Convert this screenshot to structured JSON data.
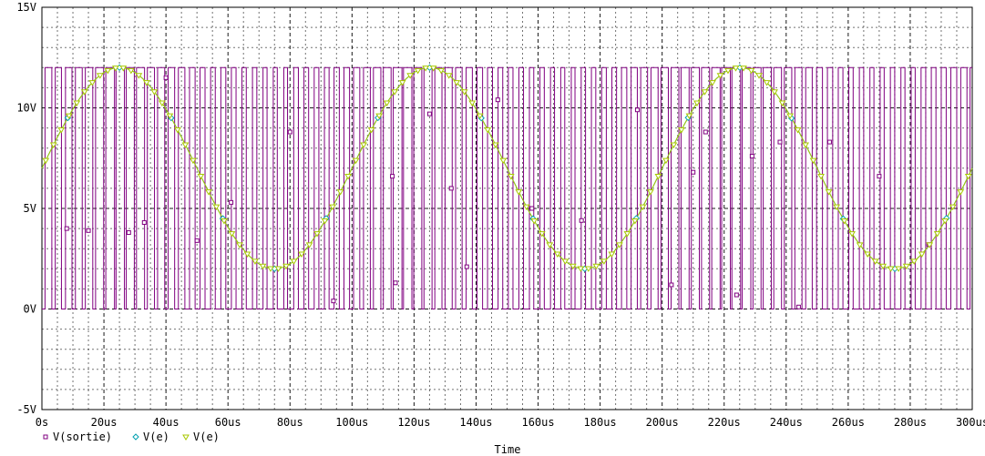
{
  "chart_data": {
    "type": "line",
    "title": "",
    "xlabel": "Time",
    "ylabel": "",
    "xlim": [
      0,
      300
    ],
    "ylim": [
      -5,
      15
    ],
    "grid": true,
    "x_ticks": [
      {
        "value": 0,
        "label": "0s"
      },
      {
        "value": 20,
        "label": "20us"
      },
      {
        "value": 40,
        "label": "40us"
      },
      {
        "value": 60,
        "label": "60us"
      },
      {
        "value": 80,
        "label": "80us"
      },
      {
        "value": 100,
        "label": "100us"
      },
      {
        "value": 120,
        "label": "120us"
      },
      {
        "value": 140,
        "label": "140us"
      },
      {
        "value": 160,
        "label": "160us"
      },
      {
        "value": 180,
        "label": "180us"
      },
      {
        "value": 200,
        "label": "200us"
      },
      {
        "value": 220,
        "label": "220us"
      },
      {
        "value": 240,
        "label": "240us"
      },
      {
        "value": 260,
        "label": "260us"
      },
      {
        "value": 280,
        "label": "280us"
      },
      {
        "value": 300,
        "label": "300us"
      }
    ],
    "y_ticks": [
      {
        "value": -5,
        "label": "-5V"
      },
      {
        "value": 0,
        "label": "0V"
      },
      {
        "value": 5,
        "label": "5V"
      },
      {
        "value": 10,
        "label": "10V"
      },
      {
        "value": 15,
        "label": "15V"
      }
    ],
    "legend_position": "bottom-left",
    "series": [
      {
        "name": "V(sortie)",
        "color": "#800080",
        "marker": "square",
        "style": "pwm",
        "low": 0,
        "high": 12,
        "carrier_period_us": 3.333,
        "transitions": [
          [
            0.0,
            0
          ],
          [
            1.0,
            12
          ],
          [
            3.2,
            0
          ],
          [
            4.3,
            12
          ],
          [
            6.3,
            0
          ],
          [
            7.6,
            12
          ],
          [
            9.7,
            0
          ],
          [
            10.8,
            12
          ],
          [
            13.0,
            0
          ],
          [
            14.0,
            12
          ],
          [
            16.4,
            0
          ],
          [
            17.3,
            12
          ],
          [
            19.9,
            0
          ],
          [
            20.6,
            12
          ],
          [
            23.4,
            0
          ],
          [
            23.9,
            12
          ],
          [
            26.6,
            0
          ],
          [
            27.2,
            12
          ],
          [
            29.8,
            0
          ],
          [
            30.5,
            12
          ],
          [
            33.1,
            0
          ],
          [
            34.0,
            12
          ],
          [
            36.3,
            0
          ],
          [
            37.3,
            12
          ],
          [
            39.6,
            0
          ],
          [
            40.7,
            12
          ],
          [
            42.8,
            0
          ],
          [
            44.0,
            12
          ],
          [
            46.1,
            0
          ],
          [
            47.6,
            12
          ],
          [
            49.4,
            0
          ],
          [
            51.0,
            12
          ],
          [
            52.6,
            0
          ],
          [
            54.4,
            12
          ],
          [
            55.9,
            0
          ],
          [
            57.7,
            12
          ],
          [
            59.3,
            0
          ],
          [
            61.1,
            12
          ],
          [
            62.6,
            0
          ],
          [
            64.5,
            12
          ],
          [
            65.9,
            0
          ],
          [
            67.9,
            12
          ],
          [
            69.3,
            0
          ],
          [
            71.3,
            12
          ],
          [
            72.6,
            0
          ],
          [
            74.6,
            12
          ],
          [
            75.9,
            0
          ],
          [
            78.0,
            12
          ],
          [
            79.2,
            0
          ],
          [
            81.2,
            12
          ],
          [
            82.7,
            0
          ],
          [
            84.5,
            12
          ],
          [
            86.0,
            0
          ],
          [
            87.8,
            12
          ],
          [
            89.3,
            0
          ],
          [
            91.1,
            12
          ],
          [
            92.6,
            0
          ],
          [
            94.2,
            12
          ],
          [
            95.9,
            0
          ],
          [
            97.4,
            12
          ],
          [
            99.2,
            0
          ],
          [
            100.5,
            12
          ],
          [
            102.5,
            0
          ],
          [
            103.7,
            12
          ],
          [
            105.9,
            0
          ],
          [
            106.9,
            12
          ],
          [
            109.3,
            0
          ],
          [
            110.1,
            12
          ],
          [
            112.6,
            0
          ],
          [
            113.3,
            12
          ],
          [
            116.1,
            0
          ],
          [
            116.6,
            12
          ],
          [
            119.3,
            0
          ],
          [
            119.9,
            12
          ],
          [
            122.5,
            0
          ],
          [
            123.2,
            12
          ],
          [
            125.8,
            0
          ],
          [
            126.7,
            12
          ],
          [
            129.0,
            0
          ],
          [
            130.0,
            12
          ],
          [
            132.3,
            0
          ],
          [
            133.4,
            12
          ],
          [
            135.5,
            0
          ],
          [
            136.8,
            12
          ],
          [
            138.8,
            0
          ],
          [
            140.3,
            12
          ],
          [
            142.1,
            0
          ],
          [
            143.7,
            12
          ],
          [
            145.3,
            0
          ],
          [
            147.1,
            12
          ],
          [
            148.6,
            0
          ],
          [
            150.4,
            12
          ],
          [
            151.9,
            0
          ],
          [
            153.8,
            12
          ],
          [
            155.3,
            0
          ],
          [
            157.2,
            12
          ],
          [
            158.6,
            0
          ],
          [
            160.6,
            12
          ],
          [
            162.0,
            0
          ],
          [
            164.0,
            12
          ],
          [
            165.3,
            0
          ],
          [
            167.3,
            12
          ],
          [
            168.6,
            0
          ],
          [
            170.7,
            12
          ],
          [
            171.9,
            0
          ],
          [
            173.9,
            12
          ],
          [
            175.3,
            0
          ],
          [
            177.2,
            12
          ],
          [
            178.6,
            0
          ],
          [
            180.5,
            12
          ],
          [
            182.0,
            0
          ],
          [
            183.8,
            12
          ],
          [
            185.3,
            0
          ],
          [
            186.9,
            12
          ],
          [
            188.6,
            0
          ],
          [
            190.0,
            12
          ],
          [
            192.0,
            0
          ],
          [
            193.1,
            12
          ],
          [
            195.3,
            0
          ],
          [
            196.4,
            12
          ],
          [
            198.7,
            0
          ],
          [
            199.6,
            12
          ],
          [
            202.0,
            0
          ],
          [
            202.9,
            12
          ],
          [
            205.4,
            0
          ],
          [
            206.1,
            12
          ],
          [
            208.7,
            0
          ],
          [
            209.4,
            12
          ],
          [
            212.0,
            0
          ],
          [
            212.7,
            12
          ],
          [
            215.3,
            0
          ],
          [
            216.0,
            12
          ],
          [
            218.7,
            0
          ],
          [
            219.2,
            12
          ],
          [
            222.0,
            0
          ],
          [
            222.5,
            12
          ],
          [
            225.3,
            0
          ],
          [
            225.8,
            12
          ],
          [
            228.6,
            0
          ],
          [
            229.3,
            12
          ],
          [
            231.9,
            0
          ],
          [
            232.6,
            12
          ],
          [
            235.2,
            0
          ],
          [
            236.0,
            12
          ],
          [
            238.5,
            0
          ],
          [
            239.4,
            12
          ],
          [
            241.8,
            0
          ],
          [
            242.8,
            12
          ],
          [
            245.1,
            0
          ],
          [
            246.3,
            12
          ],
          [
            248.4,
            0
          ],
          [
            249.8,
            12
          ],
          [
            251.7,
            0
          ],
          [
            253.3,
            12
          ],
          [
            255.0,
            0
          ],
          [
            256.8,
            12
          ],
          [
            258.3,
            0
          ],
          [
            260.2,
            12
          ],
          [
            261.6,
            0
          ],
          [
            263.6,
            12
          ],
          [
            265.0,
            0
          ],
          [
            267.0,
            12
          ],
          [
            268.3,
            0
          ],
          [
            270.3,
            12
          ],
          [
            271.6,
            0
          ],
          [
            273.6,
            12
          ],
          [
            275.0,
            0
          ],
          [
            277.0,
            12
          ],
          [
            278.3,
            0
          ],
          [
            280.3,
            12
          ],
          [
            281.6,
            0
          ],
          [
            283.5,
            12
          ],
          [
            285.0,
            0
          ],
          [
            286.8,
            12
          ],
          [
            288.3,
            0
          ],
          [
            290.0,
            12
          ],
          [
            291.6,
            0
          ],
          [
            293.1,
            12
          ],
          [
            295.0,
            0
          ],
          [
            296.3,
            12
          ],
          [
            298.3,
            0
          ],
          [
            299.3,
            12
          ],
          [
            300.0,
            12
          ]
        ],
        "markers": [
          [
            8,
            4
          ],
          [
            15,
            3.9
          ],
          [
            28,
            3.8
          ],
          [
            33,
            4.3
          ],
          [
            40,
            11.5
          ],
          [
            50,
            3.4
          ],
          [
            61,
            5.3
          ],
          [
            80,
            8.8
          ],
          [
            94,
            0.4
          ],
          [
            114,
            1.3
          ],
          [
            113,
            6.6
          ],
          [
            125,
            9.7
          ],
          [
            132,
            6
          ],
          [
            137,
            2.1
          ],
          [
            147,
            10.4
          ],
          [
            158,
            5
          ],
          [
            174,
            4.4
          ],
          [
            192,
            9.9
          ],
          [
            203,
            1.2
          ],
          [
            210,
            6.8
          ],
          [
            214,
            8.8
          ],
          [
            224,
            0.7
          ],
          [
            229,
            7.6
          ],
          [
            238,
            8.3
          ],
          [
            244,
            0.1
          ],
          [
            254,
            8.3
          ],
          [
            270,
            6.6
          ],
          [
            286,
            3.2
          ]
        ]
      },
      {
        "name": "V(e)",
        "color": "#00a0b0",
        "marker": "diamond",
        "style": "sine",
        "offset": 7,
        "amplitude": 5,
        "period_us": 100,
        "phase_deg": 0,
        "marker_spacing_us": 16.67
      },
      {
        "name": "V(e)",
        "color": "#a8c800",
        "marker": "triangle-down",
        "style": "sine",
        "offset": 7,
        "amplitude": 5,
        "period_us": 100,
        "phase_deg": 0,
        "marker_spacing_us": 2.5
      }
    ]
  }
}
